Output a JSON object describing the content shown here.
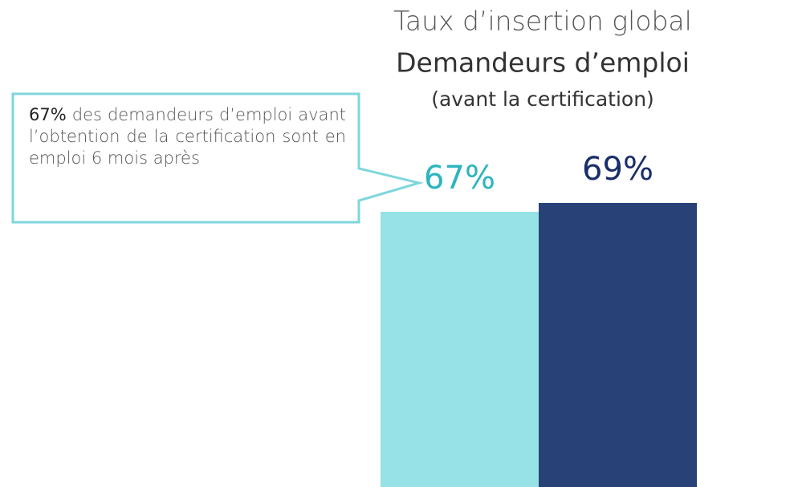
{
  "chart_data": {
    "type": "bar",
    "title": "Taux d’insertion global",
    "subtitle": "Demandeurs d’emploi",
    "subtitle2": "(avant la certification)",
    "categories": [
      null,
      null
    ],
    "values": [
      67,
      69
    ],
    "value_labels": [
      "67%",
      "69%"
    ],
    "colors": [
      "#96e2e6",
      "#284278"
    ],
    "label_colors": [
      "#2bb5bd",
      "#1a2e6b"
    ],
    "annotation": {
      "bold": "67%",
      "text": "des demandeurs d’emploi avant l’obtention de la certification sont en emploi 6 mois après"
    }
  }
}
